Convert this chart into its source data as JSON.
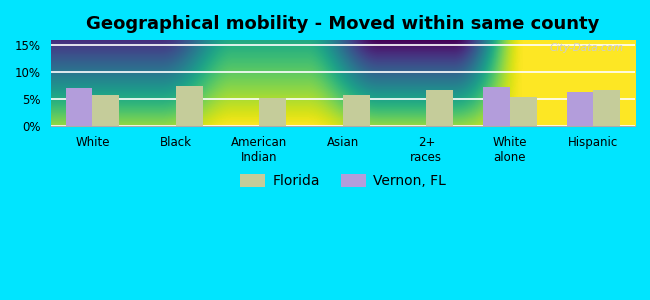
{
  "title": "Geographical mobility - Moved within same county",
  "categories": [
    "White",
    "Black",
    "American\nIndian",
    "Asian",
    "2+\nraces",
    "White\nalone",
    "Hispanic"
  ],
  "vernon_values": [
    7.1,
    0,
    0,
    0,
    0,
    7.2,
    6.4
  ],
  "florida_values": [
    5.7,
    7.4,
    5.2,
    5.7,
    6.7,
    5.4,
    6.7
  ],
  "bar_color_vernon": "#b39ddb",
  "bar_color_florida": "#c5cc9a",
  "grad_top_color": "#c8e6c0",
  "grad_bottom_color": "#f5fff5",
  "outer_background": "#00e5ff",
  "ylim": [
    0,
    16
  ],
  "yticks": [
    0,
    5,
    10,
    15
  ],
  "ytick_labels": [
    "0%",
    "5%",
    "10%",
    "15%"
  ],
  "legend_vernon": "Vernon, FL",
  "legend_florida": "Florida",
  "title_fontsize": 13,
  "tick_fontsize": 8.5,
  "legend_fontsize": 10,
  "bar_width": 0.32
}
